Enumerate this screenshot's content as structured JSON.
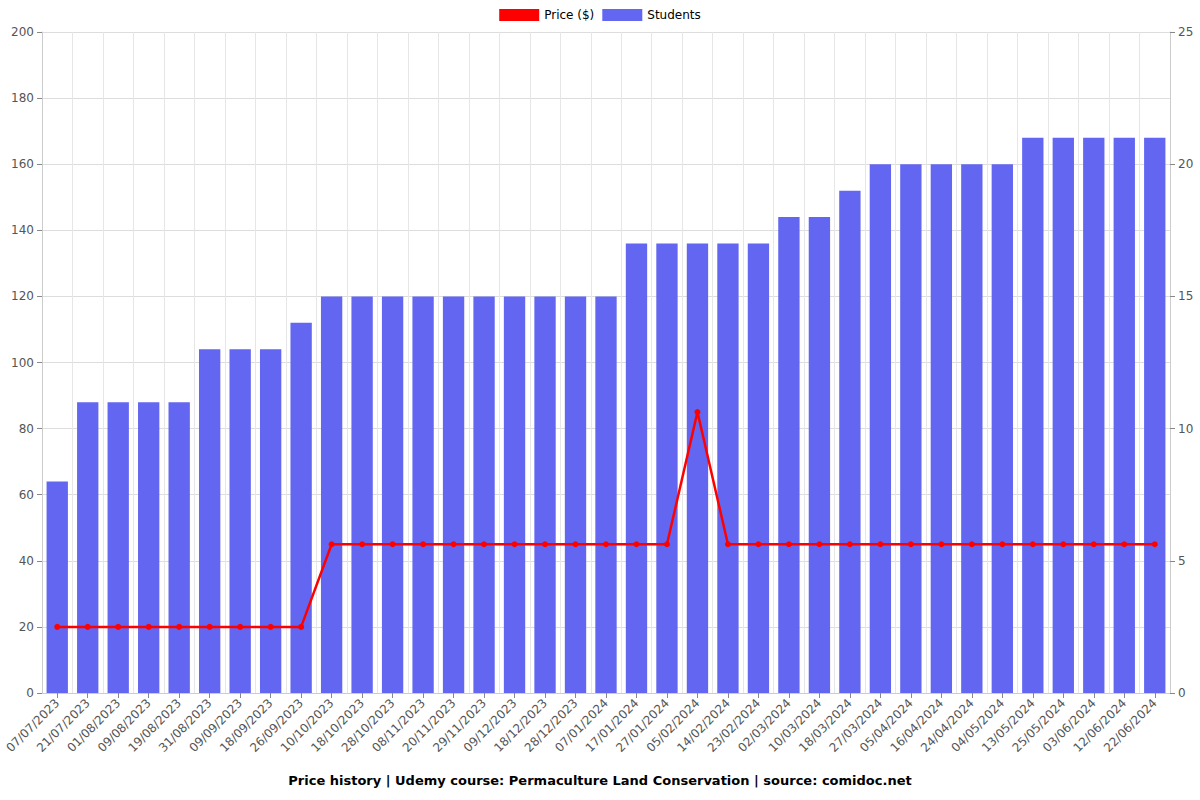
{
  "chart_data": {
    "type": "bar",
    "title": "Price history | Udemy course: Permaculture Land Conservation | source: comidoc.net",
    "categories": [
      "07/07/2023",
      "21/07/2023",
      "01/08/2023",
      "09/08/2023",
      "19/08/2023",
      "31/08/2023",
      "09/09/2023",
      "18/09/2023",
      "26/09/2023",
      "10/10/2023",
      "18/10/2023",
      "28/10/2023",
      "08/11/2023",
      "20/11/2023",
      "29/11/2023",
      "09/12/2023",
      "18/12/2023",
      "28/12/2023",
      "07/01/2024",
      "17/01/2024",
      "27/01/2024",
      "05/02/2024",
      "14/02/2024",
      "23/02/2024",
      "02/03/2024",
      "10/03/2024",
      "18/03/2024",
      "27/03/2024",
      "05/04/2024",
      "16/04/2024",
      "24/04/2024",
      "04/05/2024",
      "13/05/2024",
      "25/05/2024",
      "03/06/2024",
      "12/06/2024",
      "22/06/2024"
    ],
    "series": [
      {
        "name": "Price ($)",
        "type": "line",
        "color": "#ff0000",
        "marker": "circle",
        "values": [
          20,
          20,
          20,
          20,
          20,
          20,
          20,
          20,
          20,
          45,
          45,
          45,
          45,
          45,
          45,
          45,
          45,
          45,
          45,
          45,
          45,
          85,
          45,
          45,
          45,
          45,
          45,
          45,
          45,
          45,
          45,
          45,
          45,
          45,
          45,
          45,
          45
        ]
      },
      {
        "name": "Students",
        "type": "bar",
        "color": "#6366f1",
        "axis": "y2",
        "values": [
          8,
          11,
          11,
          11,
          11,
          13,
          13,
          13,
          14,
          15,
          15,
          15,
          15,
          15,
          15,
          15,
          15,
          15,
          15,
          17,
          17,
          17,
          17,
          17,
          18,
          18,
          19,
          20,
          20,
          20,
          20,
          20,
          21,
          21,
          21,
          21,
          21
        ]
      }
    ],
    "ylim": [
      0,
      200
    ],
    "yticks": [
      0,
      20,
      40,
      60,
      80,
      100,
      120,
      140,
      160,
      180,
      200
    ],
    "y2lim": [
      0,
      25
    ],
    "y2ticks": [
      0,
      5,
      10,
      15,
      20,
      25
    ],
    "grid": true,
    "legend": "top"
  }
}
